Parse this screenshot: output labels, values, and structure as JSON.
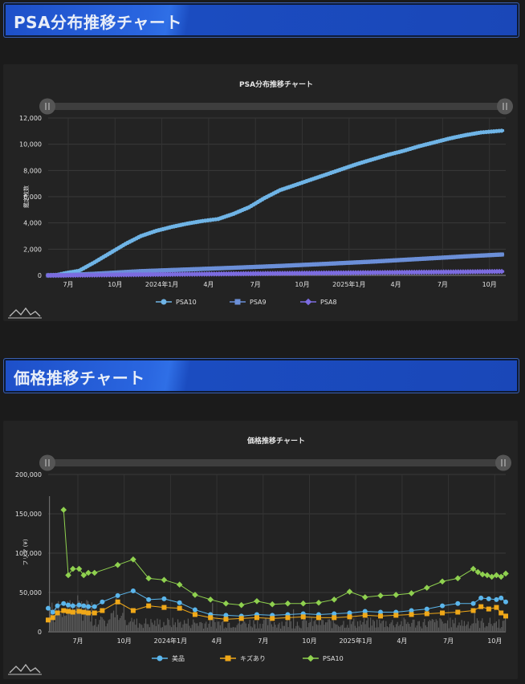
{
  "headers": {
    "psa": "PSA分布推移チャート",
    "price": "価格推移チャート"
  },
  "chart_data": [
    {
      "type": "line",
      "title": "PSA分布推移チャート",
      "ylabel": "鑑定枚数",
      "ylim": [
        0,
        12000
      ],
      "yticks": [
        "12,000",
        "10,000",
        "8,000",
        "6,000",
        "4,000",
        "2,000",
        "0"
      ],
      "xticks": [
        "7月",
        "10月",
        "2024年1月",
        "4月",
        "7月",
        "10月",
        "2025年1月",
        "4月",
        "7月",
        "10月"
      ],
      "series": [
        {
          "name": "PSA10",
          "color": "#6fb4e6",
          "marker": "circle",
          "x": [
            0,
            0.5,
            1,
            2,
            3,
            4,
            5,
            6,
            7,
            8,
            9,
            10,
            11,
            12,
            13,
            14,
            15,
            16,
            17,
            18,
            19,
            20,
            21,
            22,
            23,
            24,
            25,
            26,
            27,
            28,
            29,
            29.5
          ],
          "y": [
            0,
            20,
            150,
            350,
            1000,
            1700,
            2400,
            3000,
            3400,
            3700,
            3950,
            4150,
            4300,
            4700,
            5200,
            5900,
            6500,
            6900,
            7300,
            7700,
            8100,
            8500,
            8850,
            9200,
            9500,
            9850,
            10150,
            10450,
            10700,
            10900,
            11000,
            11050
          ]
        },
        {
          "name": "PSA9",
          "color": "#6b8fd8",
          "marker": "square",
          "x": [
            0,
            1,
            3,
            6,
            9,
            12,
            15,
            18,
            21,
            24,
            27,
            29.5
          ],
          "y": [
            0,
            20,
            120,
            320,
            450,
            580,
            720,
            880,
            1050,
            1250,
            1450,
            1600
          ]
        },
        {
          "name": "PSA8",
          "color": "#7c6ce0",
          "marker": "diamond",
          "x": [
            0,
            1,
            3,
            6,
            9,
            12,
            15,
            18,
            21,
            24,
            27,
            29.5
          ],
          "y": [
            0,
            5,
            25,
            60,
            90,
            120,
            150,
            180,
            210,
            240,
            270,
            300
          ]
        }
      ]
    },
    {
      "type": "line",
      "title": "価格推移チャート",
      "ylabel": "フリマ (¥)",
      "ylim": [
        0,
        200000
      ],
      "yticks": [
        "200,000",
        "150,000",
        "100,000",
        "50,000",
        "0"
      ],
      "xticks": [
        "7月",
        "10月",
        "2024年1月",
        "4月",
        "7月",
        "10月",
        "2025年1月",
        "4月",
        "7月",
        "10月"
      ],
      "series": [
        {
          "name": "美品",
          "color": "#5bb6ec",
          "marker": "circle",
          "x": [
            0,
            0.3,
            0.6,
            1,
            1.3,
            1.6,
            2,
            2.3,
            2.6,
            3,
            3.5,
            4.5,
            5.5,
            6.5,
            7.5,
            8.5,
            9.5,
            10.5,
            11.5,
            12.5,
            13.5,
            14.5,
            15.5,
            16.5,
            17.5,
            18.5,
            19.5,
            20.5,
            21.5,
            22.5,
            23.5,
            24.5,
            25.5,
            26.5,
            27.5,
            28,
            28.5,
            29,
            29.3,
            29.6
          ],
          "y": [
            30000,
            25000,
            33000,
            36000,
            34000,
            33000,
            34000,
            33000,
            32000,
            32000,
            38000,
            46000,
            52000,
            41000,
            42000,
            37000,
            28000,
            22000,
            21000,
            20000,
            22000,
            21000,
            22000,
            23000,
            22000,
            23000,
            24000,
            26000,
            25000,
            25000,
            27000,
            29000,
            33000,
            36000,
            36000,
            43000,
            42000,
            41000,
            43000,
            38000
          ]
        },
        {
          "name": "キズあり",
          "color": "#f0a818",
          "marker": "square",
          "x": [
            0,
            0.3,
            0.6,
            1,
            1.3,
            1.6,
            2,
            2.3,
            2.6,
            3,
            3.5,
            4.5,
            5.5,
            6.5,
            7.5,
            8.5,
            9.5,
            10.5,
            11.5,
            12.5,
            13.5,
            14.5,
            15.5,
            16.5,
            17.5,
            18.5,
            19.5,
            20.5,
            21.5,
            22.5,
            23.5,
            24.5,
            25.5,
            26.5,
            27.5,
            28,
            28.5,
            29,
            29.3,
            29.6
          ],
          "y": [
            15000,
            18000,
            24000,
            27000,
            26000,
            25000,
            26000,
            25000,
            24000,
            24000,
            27000,
            38000,
            27000,
            33000,
            31000,
            30000,
            22000,
            18000,
            16000,
            17000,
            18000,
            17000,
            18000,
            19000,
            18000,
            18000,
            19000,
            21000,
            20000,
            21000,
            22000,
            23000,
            24000,
            25000,
            27000,
            32000,
            29000,
            31000,
            24000,
            20000
          ]
        },
        {
          "name": "PSA10",
          "color": "#8fd14f",
          "marker": "diamond",
          "x": [
            1,
            1.3,
            1.6,
            2,
            2.3,
            2.6,
            3,
            4.5,
            5.5,
            6.5,
            7.5,
            8.5,
            9.5,
            10.5,
            11.5,
            12.5,
            13.5,
            14.5,
            15.5,
            16.5,
            17.5,
            18.5,
            19.5,
            20.5,
            21.5,
            22.5,
            23.5,
            24.5,
            25.5,
            26.5,
            27.5,
            27.8,
            28.1,
            28.4,
            28.7,
            29,
            29.3,
            29.6
          ],
          "y": [
            155000,
            72000,
            80000,
            80000,
            72000,
            75000,
            75000,
            85000,
            92000,
            68000,
            66000,
            60000,
            47000,
            41000,
            36000,
            34000,
            39000,
            35000,
            36000,
            36000,
            37000,
            41000,
            51000,
            44000,
            46000,
            47000,
            49000,
            56000,
            64000,
            68000,
            80000,
            76000,
            73000,
            72000,
            70000,
            72000,
            70000,
            74000
          ]
        }
      ]
    }
  ]
}
